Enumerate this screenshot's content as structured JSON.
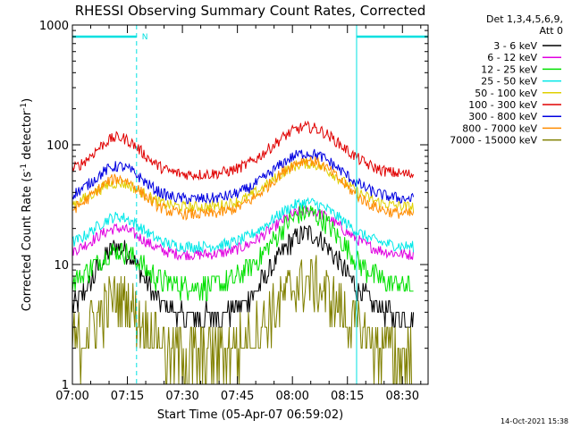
{
  "chart_data": {
    "type": "line",
    "title": "RHESSI Observing Summary Count Rates, Corrected",
    "xlabel": "Start Time (05-Apr-07 06:59:02)",
    "ylabel_main": "Corrected Count Rate (s",
    "ylabel_sup1": "-1",
    "ylabel_mid": " detector",
    "ylabel_sup2": "-1",
    "ylabel_end": ")",
    "yscale": "log",
    "ylim": [
      1,
      1000
    ],
    "xlim_minutes": [
      0,
      97
    ],
    "x_ticks": [
      {
        "value": 0,
        "label": "07:00"
      },
      {
        "value": 15,
        "label": "07:15"
      },
      {
        "value": 30,
        "label": "07:30"
      },
      {
        "value": 45,
        "label": "07:45"
      },
      {
        "value": 60,
        "label": "08:00"
      },
      {
        "value": 75,
        "label": "08:15"
      },
      {
        "value": 90,
        "label": "08:30"
      }
    ],
    "y_ticks": [
      {
        "value": 1,
        "label": "1"
      },
      {
        "value": 10,
        "label": "10"
      },
      {
        "value": 100,
        "label": "100"
      },
      {
        "value": 1000,
        "label": "1000"
      }
    ],
    "legend_header": [
      "Det 1,3,4,5,6,9,",
      "Att 0"
    ],
    "legend_position": "right",
    "series": [
      {
        "name": "3 - 6 keV",
        "color": "#000000",
        "base": 3.6,
        "peak1": 14,
        "peak2": 18
      },
      {
        "name": "6 - 12 keV",
        "color": "#e000e0",
        "base": 12,
        "peak1": 20,
        "peak2": 28
      },
      {
        "name": "12 - 25 keV",
        "color": "#00e000",
        "base": 6.5,
        "peak1": 13,
        "peak2": 27
      },
      {
        "name": "25 - 50 keV",
        "color": "#00e8e8",
        "base": 14,
        "peak1": 25,
        "peak2": 33
      },
      {
        "name": "50 - 100 keV",
        "color": "#e0d000",
        "base": 30,
        "peak1": 48,
        "peak2": 70
      },
      {
        "name": "100 - 300 keV",
        "color": "#e00000",
        "base": 56,
        "peak1": 115,
        "peak2": 140
      },
      {
        "name": "300 - 800 keV",
        "color": "#0000e0",
        "base": 35,
        "peak1": 66,
        "peak2": 85
      },
      {
        "name": "800 - 7000 keV",
        "color": "#ff8c00",
        "base": 26,
        "peak1": 52,
        "peak2": 74
      },
      {
        "name": "7000 - 15000 keV",
        "color": "#808000",
        "base": 1.8,
        "peak1": 5,
        "peak2": 7
      }
    ],
    "night_intervals_minutes": [
      [
        0,
        17.5
      ],
      [
        77.5,
        97
      ]
    ],
    "saa_marker": "N",
    "timestamp": "14-Oct-2021 15:38"
  }
}
